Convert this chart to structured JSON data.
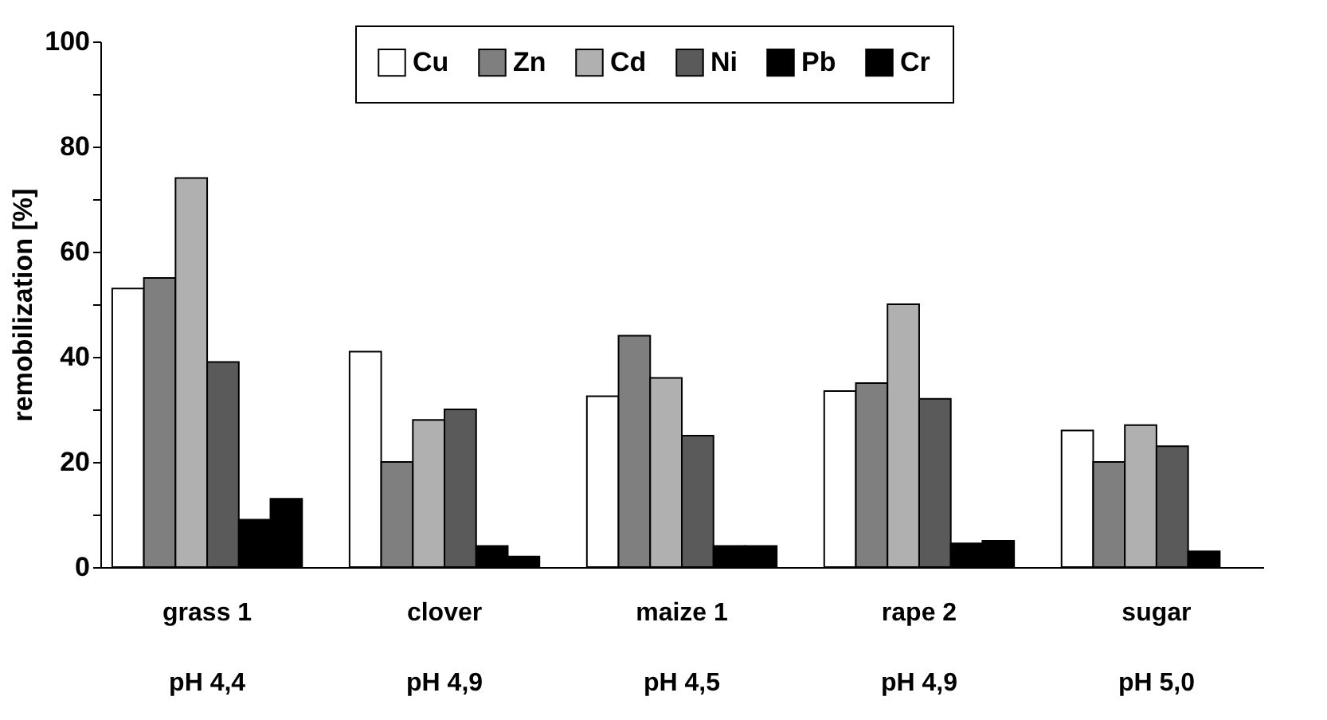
{
  "chart_data": {
    "type": "bar",
    "ylabel": "remobilization [%]",
    "categories": [
      "grass 1\npH 4,4",
      "clover\npH 4,9",
      "maize 1\npH 4,5",
      "rape 2\npH 4,9",
      "sugar\npH 5,0"
    ],
    "series": [
      {
        "name": "Cu",
        "color": "#ffffff",
        "values": [
          53,
          41,
          32.5,
          33.5,
          26
        ]
      },
      {
        "name": "Zn",
        "color": "#7f7f7f",
        "values": [
          55,
          20,
          44,
          35,
          20
        ]
      },
      {
        "name": "Cd",
        "color": "#b0b0b0",
        "values": [
          74,
          28,
          36,
          50,
          27
        ]
      },
      {
        "name": "Ni",
        "color": "#5a5a5a",
        "values": [
          39,
          30,
          25,
          32,
          23
        ]
      },
      {
        "name": "Pb",
        "color": "#000000",
        "values": [
          9,
          4,
          4,
          4.5,
          3
        ]
      },
      {
        "name": "Cr",
        "color": "#000000",
        "values": [
          13,
          2,
          4,
          5,
          null
        ]
      }
    ],
    "ylim": [
      0,
      100
    ],
    "yticks": [
      0,
      {
        "value": 10,
        "label": null
      },
      20,
      {
        "value": 30,
        "label": null
      },
      40,
      {
        "value": 50,
        "label": null
      },
      60,
      {
        "value": 70,
        "label": null
      },
      80,
      {
        "value": 90,
        "label": null
      },
      100
    ],
    "grid": false,
    "legend": "top"
  }
}
